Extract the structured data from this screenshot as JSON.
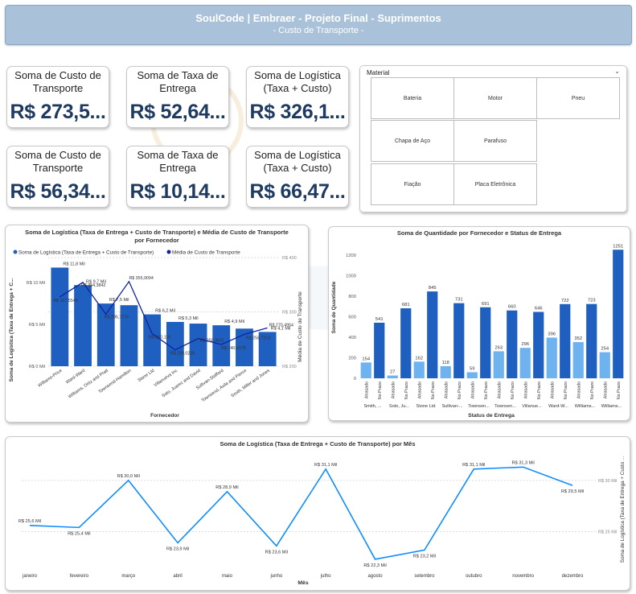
{
  "header": {
    "title": "SoulCode | Embraer - Projeto Final - Suprimentos",
    "subtitle": "- Custo de Transporte -"
  },
  "kpis": [
    {
      "label": "Soma de Custo de Transporte",
      "value": "R$ 273,5..."
    },
    {
      "label": "Soma de Taxa de Entrega",
      "value": "R$ 52,64..."
    },
    {
      "label": "Soma de Logística (Taxa + Custo)",
      "value": "R$ 326,1..."
    },
    {
      "label": "Soma de Custo de Transporte",
      "value": "R$ 56,34..."
    },
    {
      "label": "Soma de Taxa de Entrega",
      "value": "R$ 10,14..."
    },
    {
      "label": "Soma de Logística (Taxa + Custo)",
      "value": "R$ 66,47..."
    }
  ],
  "slicer": {
    "title": "Material",
    "items": [
      "Bateria",
      "Motor",
      "Pneu",
      "Chapa de Aço",
      "Parafuso",
      "Fiação",
      "Placa Eletrônica"
    ]
  },
  "colors": {
    "dark_blue": "#1f5fbf",
    "line_blue": "#12239e",
    "light_blue": "#6fb2f0",
    "kpi_text": "#1f3a60"
  },
  "chart_data": [
    {
      "type": "bar",
      "title": "Soma de Logística (Taxa de Entrega + Custo de Transporte) e Média de Custo de Transporte por Fornecedor",
      "xlabel": "Fornecedor",
      "ylabel": "Soma de Logística (Taxa de Entrega + C...",
      "y2label": "Média de Custo de Transporte",
      "categories": [
        "Williams-Price",
        "Ward-Ward",
        "Williams, Ortiz and Pratt",
        "Townsend-Hamilton",
        "Stone Ltd",
        "Villanueva Inc",
        "Soto, Juarez and David",
        "Sullivan-Stafford",
        "Townsend, Avila and Pierce",
        "Smith, Miller and Jones"
      ],
      "yticks": [
        "R$ 0 Mil",
        "R$ 5 Mil",
        "R$ 10 Mil"
      ],
      "y2ticks": [
        "R$ 200",
        "R$ 300",
        "R$ 400"
      ],
      "ylim": [
        0,
        13
      ],
      "y2lim": [
        200,
        400
      ],
      "series": [
        {
          "name": "Soma de Logística (Taxa de Entrega + Custo de Transporte)",
          "type": "bar",
          "values": [
            11.8,
            9.7,
            7.5,
            7.3,
            6.2,
            5.3,
            5.1,
            4.9,
            4.5,
            4.1
          ],
          "labels": [
            "R$ 11,8 Mil",
            "R$ 9,7 Mil",
            "R$ 7,5 Mil",
            "",
            "R$ 6,2 Mil",
            "R$ 5,3 Mil",
            "",
            "R$ 4,9 Mil",
            "",
            "R$ 4,1 Mil"
          ]
        },
        {
          "name": "Média de Custo de Transporte",
          "type": "line",
          "values": [
            327.5548,
            354.3842,
            295.7776,
            355.9094,
            260.115,
            230.0228,
            250.9631,
            240.0176,
            258.7213,
            270.4954
          ],
          "labels": [
            "R$ 327,5548",
            "R$ 354,3842",
            "R$ 295,7776",
            "R$ 355,9094",
            "R$ 260,115",
            "R$ 230,0228",
            "R$ 250,9631",
            "R$ 240,0176",
            "R$ 258,7213",
            "R$ 270,4954"
          ]
        }
      ],
      "legend": "top-left"
    },
    {
      "type": "bar",
      "title": "Soma de Quantidade por Fornecedor e Status de Entrega",
      "xlabel": "Status de Entrega",
      "ylabel": "Soma de Quantidade",
      "yticks": [
        "0",
        "200",
        "400",
        "600",
        "800",
        "1000",
        "1200"
      ],
      "ylim": [
        0,
        1300
      ],
      "groups": [
        "Smith, ...",
        "Soto, Ju...",
        "Stone Ltd",
        "Sullivan-...",
        "Townsen...",
        "Townsen...",
        "Villanue...",
        "Ward-W...",
        "Williams...",
        "Williams..."
      ],
      "bars": [
        {
          "status": "Atrasado",
          "value": 154
        },
        {
          "status": "No Prazo",
          "value": 541
        },
        {
          "status": "Atrasado",
          "value": 27
        },
        {
          "status": "No Prazo",
          "value": 681
        },
        {
          "status": "Atrasado",
          "value": 162
        },
        {
          "status": "No Prazo",
          "value": 845
        },
        {
          "status": "Atrasado",
          "value": 118
        },
        {
          "status": "No Prazo",
          "value": 731
        },
        {
          "status": "Atrasado",
          "value": 59
        },
        {
          "status": "No Prazo",
          "value": 691
        },
        {
          "status": "Atrasado",
          "value": 263
        },
        {
          "status": "No Prazo",
          "value": 660
        },
        {
          "status": "Atrasado",
          "value": 296
        },
        {
          "status": "No Prazo",
          "value": 646
        },
        {
          "status": "Atrasado",
          "value": 396
        },
        {
          "status": "No Prazo",
          "value": 722
        },
        {
          "status": "Atrasado",
          "value": 352
        },
        {
          "status": "No Prazo",
          "value": 723
        },
        {
          "status": "Atrasado",
          "value": 254
        },
        {
          "status": "No Prazo",
          "value": 1251
        }
      ]
    },
    {
      "type": "line",
      "title": "Soma de Logística (Taxa de Entrega + Custo de Transporte) por Mês",
      "xlabel": "Mês",
      "ylabel": "Soma de Logística (Taxa de Entrega + Custo ...",
      "categories": [
        "janeiro",
        "fevereiro",
        "março",
        "abril",
        "maio",
        "junho",
        "julho",
        "agosto",
        "setembro",
        "outubro",
        "novembro",
        "dezembro"
      ],
      "values": [
        25.6,
        25.4,
        30.0,
        23.9,
        28.9,
        23.6,
        31.1,
        22.3,
        23.2,
        31.1,
        31.3,
        29.5
      ],
      "labels": [
        "R$ 25,6 Mil",
        "R$ 25,4 Mil",
        "R$ 30,0 Mil",
        "R$ 23,9 Mil",
        "R$ 28,9 Mil",
        "R$ 23,6 Mil",
        "R$ 31,1 Mil",
        "R$ 22,3 Mil",
        "R$ 23,2 Mil",
        "R$ 31,1 Mil",
        "R$ 31,3 Mil",
        "R$ 29,5 Mil"
      ],
      "yticks": [
        "R$ 25 Mil",
        "R$ 30 Mil"
      ],
      "ylim": [
        21.5,
        32.5
      ]
    }
  ]
}
